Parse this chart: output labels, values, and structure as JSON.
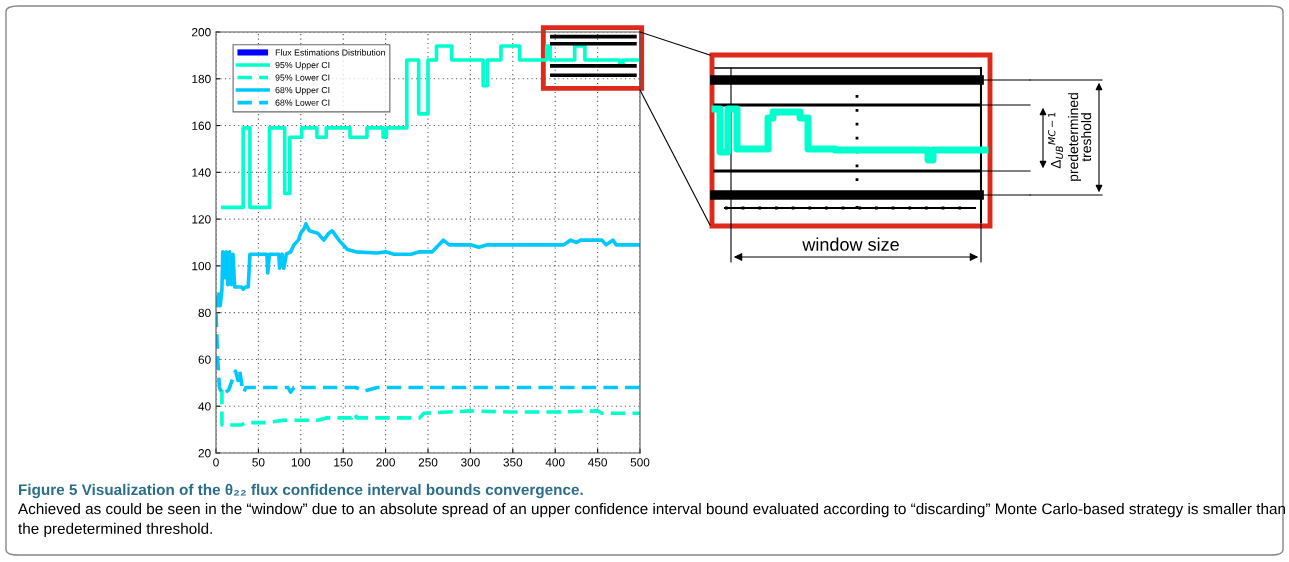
{
  "chart_data": {
    "type": "line",
    "xlim": [
      0,
      500
    ],
    "ylim": [
      20,
      200
    ],
    "xticks": [
      0,
      50,
      100,
      150,
      200,
      250,
      300,
      350,
      400,
      450,
      500
    ],
    "yticks": [
      20,
      40,
      60,
      80,
      100,
      120,
      140,
      160,
      180,
      200
    ],
    "grid": true,
    "legend": "top left",
    "line_style": "solid",
    "marker": "none",
    "series": [
      {
        "name": "Flux Estimations Distribution",
        "type": "bar",
        "color": "#0000ff"
      },
      {
        "name": "95% Upper CI",
        "type": "step",
        "color": "#00ffcc",
        "line_style": "solid",
        "x": [
          8,
          32,
          40,
          63,
          81,
          87,
          101,
          119,
          130,
          158,
          178,
          197,
          201,
          225,
          239,
          250,
          260,
          278,
          315,
          320,
          336,
          358,
          390,
          394,
          423,
          435,
          476,
          480,
          500
        ],
        "values": [
          125,
          159,
          125,
          159,
          131,
          155,
          159,
          155,
          159,
          155,
          159,
          155,
          159,
          188,
          165,
          188,
          194,
          188,
          177,
          188,
          194,
          188,
          194,
          188,
          194,
          188,
          186,
          188,
          188
        ]
      },
      {
        "name": "95% Lower CI",
        "color": "#00ffcc",
        "line_style": "dashed",
        "x": [
          7,
          7,
          30,
          35,
          60,
          80,
          120,
          130,
          160,
          163,
          166,
          200,
          240,
          245,
          300,
          350,
          400,
          450,
          455,
          500
        ],
        "values": [
          47,
          32,
          32,
          33,
          33,
          34,
          34,
          35,
          35,
          37,
          35,
          35,
          35,
          37,
          38,
          37.5,
          37.5,
          38,
          37,
          37
        ]
      },
      {
        "name": "68% Upper CI",
        "color": "#00c8ff",
        "line_style": "solid",
        "x": [
          1,
          3,
          5,
          7,
          8,
          10,
          12,
          14,
          16,
          18,
          20,
          22,
          30,
          32,
          35,
          38,
          40,
          60,
          61,
          63,
          74,
          75,
          78,
          80,
          83,
          88,
          92,
          97,
          100,
          104,
          106,
          110,
          120,
          127,
          133,
          137,
          145,
          155,
          165,
          190,
          200,
          210,
          230,
          240,
          255,
          260,
          268,
          275,
          300,
          310,
          320,
          410,
          418,
          425,
          430,
          455,
          460,
          468,
          472,
          500
        ],
        "values": [
          83,
          88,
          83,
          90,
          106,
          95,
          106,
          92,
          106,
          92,
          105,
          91,
          91,
          90,
          91,
          91,
          105,
          105,
          97,
          105,
          105,
          99,
          105,
          99,
          105,
          106,
          109,
          111,
          114,
          116,
          118,
          115,
          114,
          111,
          114,
          115,
          111,
          107,
          106,
          105.5,
          106,
          105,
          105,
          106,
          106,
          108,
          111,
          109,
          109,
          108,
          109,
          109,
          111,
          110,
          111,
          111,
          109,
          111,
          109,
          109
        ]
      },
      {
        "name": "68% Lower CI",
        "color": "#00c8ff",
        "line_style": "dashed",
        "x": [
          0,
          2,
          4,
          8,
          15,
          20,
          23,
          26,
          28,
          31,
          33,
          35,
          85,
          88,
          92,
          165,
          175,
          190,
          500
        ],
        "values": [
          80,
          60,
          48,
          45,
          47,
          52,
          55,
          51,
          55,
          48,
          46,
          48,
          48,
          46,
          48,
          48,
          46.5,
          48,
          48
        ]
      },
      {
        "color": "#000000",
        "x": [
          396,
          494
        ],
        "values": [
          198,
          198
        ]
      },
      {
        "color": "#000000",
        "x": [
          396,
          494
        ],
        "values": [
          195,
          195
        ]
      },
      {
        "color": "#000000",
        "x": [
          396,
          494
        ],
        "values": [
          185.5,
          185.5
        ]
      },
      {
        "color": "#000000",
        "x": [
          396,
          494
        ],
        "values": [
          181.5,
          181.5
        ]
      }
    ],
    "annotations": [
      "Figure 5 Visualization of the θ₂₂ flux confidence interval bounds convergence.",
      "Achieved as could be seen in the “window” due to an absolute spread of an upper confidence interval bound evaluated according to “discarding” Monte Carlo-based strategy is smaller than the predetermined threshold.",
      "window size",
      "Δ$_{UB}$$^{MC−1}$",
      "predetermined\ntreshold"
    ]
  }
}
